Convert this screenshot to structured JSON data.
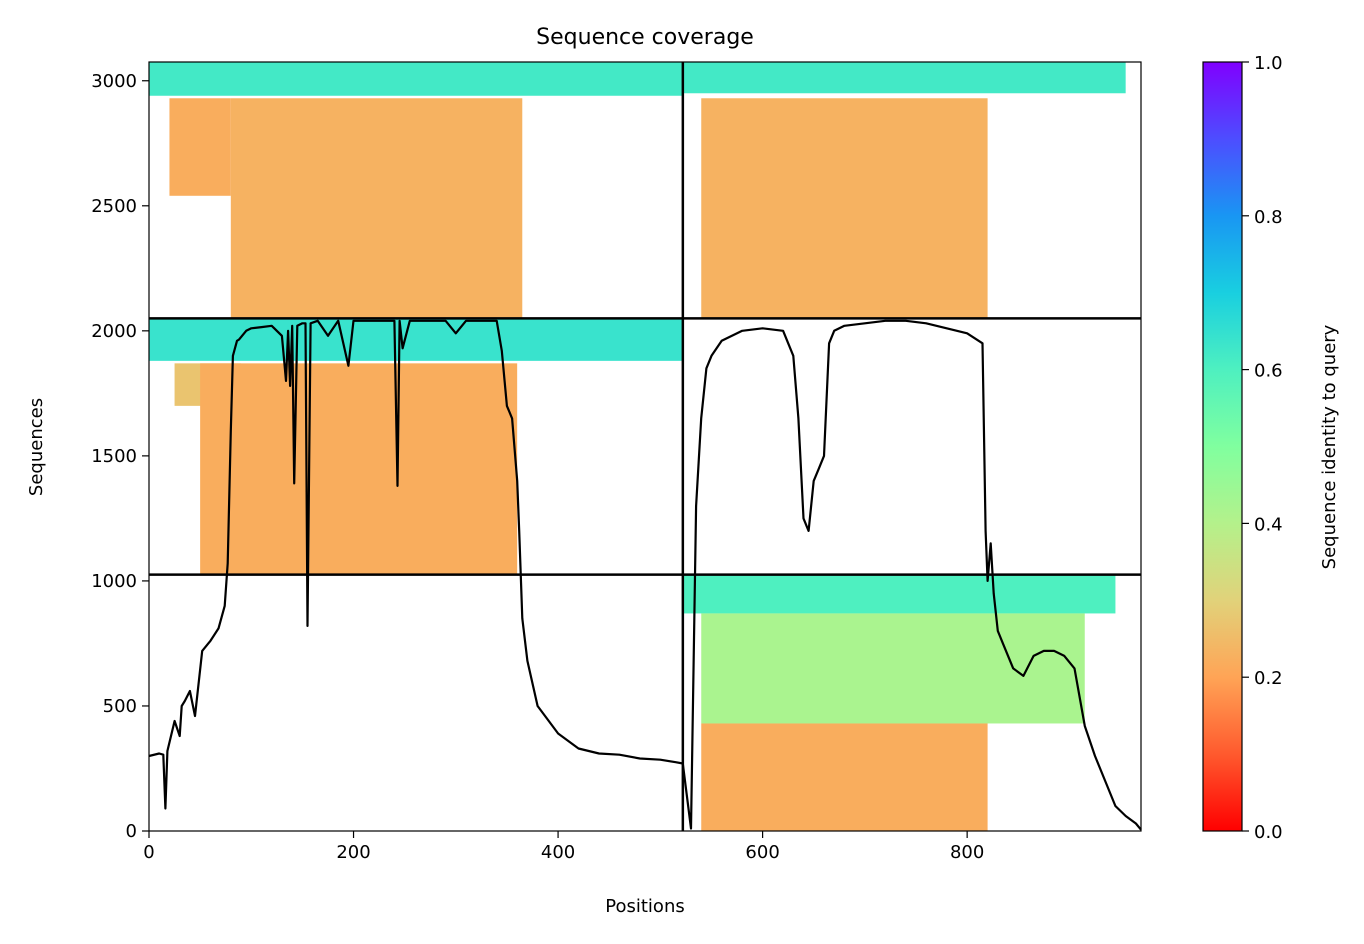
{
  "chart_data": {
    "type": "heatmap",
    "title": "Sequence coverage",
    "xlabel": "Positions",
    "ylabel": "Sequences",
    "xlim": [
      0,
      970
    ],
    "ylim": [
      0,
      3075
    ],
    "x_ticks": [
      0,
      200,
      400,
      600,
      800
    ],
    "y_ticks": [
      0,
      500,
      1000,
      1500,
      2000,
      2500,
      3000
    ],
    "chain_boundaries": {
      "x": [
        522
      ],
      "y": [
        1025,
        2050
      ]
    },
    "colorbar": {
      "label": "Sequence identity to query",
      "colormap": "rainbow_r",
      "range": [
        0,
        1
      ],
      "ticks": [
        0.0,
        0.2,
        0.4,
        0.6,
        0.8,
        1.0
      ],
      "tick_labels": [
        "0.0",
        "0.2",
        "0.4",
        "0.6",
        "0.8",
        "1.0"
      ]
    },
    "coverage_blocks": [
      {
        "x0": 0,
        "x1": 522,
        "y0": 2940,
        "y1": 3075,
        "identity": 0.62
      },
      {
        "x0": 20,
        "x1": 80,
        "y0": 2540,
        "y1": 2930,
        "identity": 0.22
      },
      {
        "x0": 80,
        "x1": 365,
        "y0": 2050,
        "y1": 2930,
        "identity": 0.23
      },
      {
        "x0": 522,
        "x1": 955,
        "y0": 2950,
        "y1": 3075,
        "identity": 0.62
      },
      {
        "x0": 540,
        "x1": 820,
        "y0": 2050,
        "y1": 2930,
        "identity": 0.23
      },
      {
        "x0": 0,
        "x1": 522,
        "y0": 1880,
        "y1": 2050,
        "identity": 0.64
      },
      {
        "x0": 25,
        "x1": 90,
        "y0": 1700,
        "y1": 1870,
        "identity": 0.27
      },
      {
        "x0": 50,
        "x1": 360,
        "y0": 1025,
        "y1": 1870,
        "identity": 0.22
      },
      {
        "x0": 522,
        "x1": 945,
        "y0": 870,
        "y1": 1025,
        "identity": 0.6
      },
      {
        "x0": 540,
        "x1": 915,
        "y0": 430,
        "y1": 870,
        "identity": 0.42
      },
      {
        "x0": 540,
        "x1": 820,
        "y0": 0,
        "y1": 430,
        "identity": 0.22
      }
    ],
    "coverage_line": {
      "x": [
        0,
        10,
        14,
        16,
        18,
        25,
        30,
        32,
        35,
        40,
        45,
        52,
        58,
        60,
        68,
        74,
        77,
        80,
        82,
        86,
        88,
        95,
        100,
        110,
        120,
        130,
        134,
        136,
        138,
        140,
        142,
        145,
        150,
        153,
        155,
        158,
        165,
        175,
        185,
        195,
        200,
        205,
        215,
        225,
        235,
        240,
        243,
        245,
        248,
        255,
        270,
        290,
        300,
        310,
        320,
        340,
        345,
        350,
        355,
        360,
        362,
        365,
        370,
        380,
        400,
        420,
        440,
        460,
        480,
        500,
        515,
        522,
        530,
        535,
        540,
        545,
        550,
        560,
        580,
        600,
        620,
        630,
        635,
        640,
        645,
        650,
        655,
        660,
        665,
        670,
        680,
        700,
        720,
        740,
        760,
        780,
        800,
        815,
        818,
        820,
        823,
        826,
        830,
        835,
        845,
        855,
        865,
        875,
        885,
        895,
        905,
        915,
        925,
        935,
        945,
        955,
        965,
        970
      ],
      "y": [
        300,
        310,
        305,
        90,
        320,
        440,
        380,
        500,
        520,
        560,
        460,
        720,
        750,
        760,
        810,
        900,
        1070,
        1600,
        1900,
        1960,
        1965,
        2000,
        2010,
        2015,
        2020,
        1980,
        1800,
        2000,
        1780,
        2020,
        1390,
        2020,
        2030,
        2030,
        820,
        2030,
        2040,
        1980,
        2040,
        1860,
        2040,
        2040,
        2040,
        2040,
        2040,
        2040,
        1380,
        2040,
        1930,
        2040,
        2040,
        2040,
        1990,
        2040,
        2040,
        2040,
        1920,
        1700,
        1650,
        1400,
        1200,
        850,
        680,
        500,
        390,
        330,
        310,
        305,
        290,
        285,
        275,
        270,
        10,
        1300,
        1650,
        1850,
        1900,
        1960,
        2000,
        2010,
        2000,
        1900,
        1650,
        1250,
        1200,
        1400,
        1450,
        1500,
        1950,
        2000,
        2020,
        2030,
        2040,
        2040,
        2030,
        2010,
        1990,
        1950,
        1200,
        1000,
        1150,
        950,
        800,
        750,
        650,
        620,
        700,
        720,
        720,
        700,
        650,
        420,
        300,
        200,
        100,
        60,
        30,
        5
      ]
    }
  }
}
